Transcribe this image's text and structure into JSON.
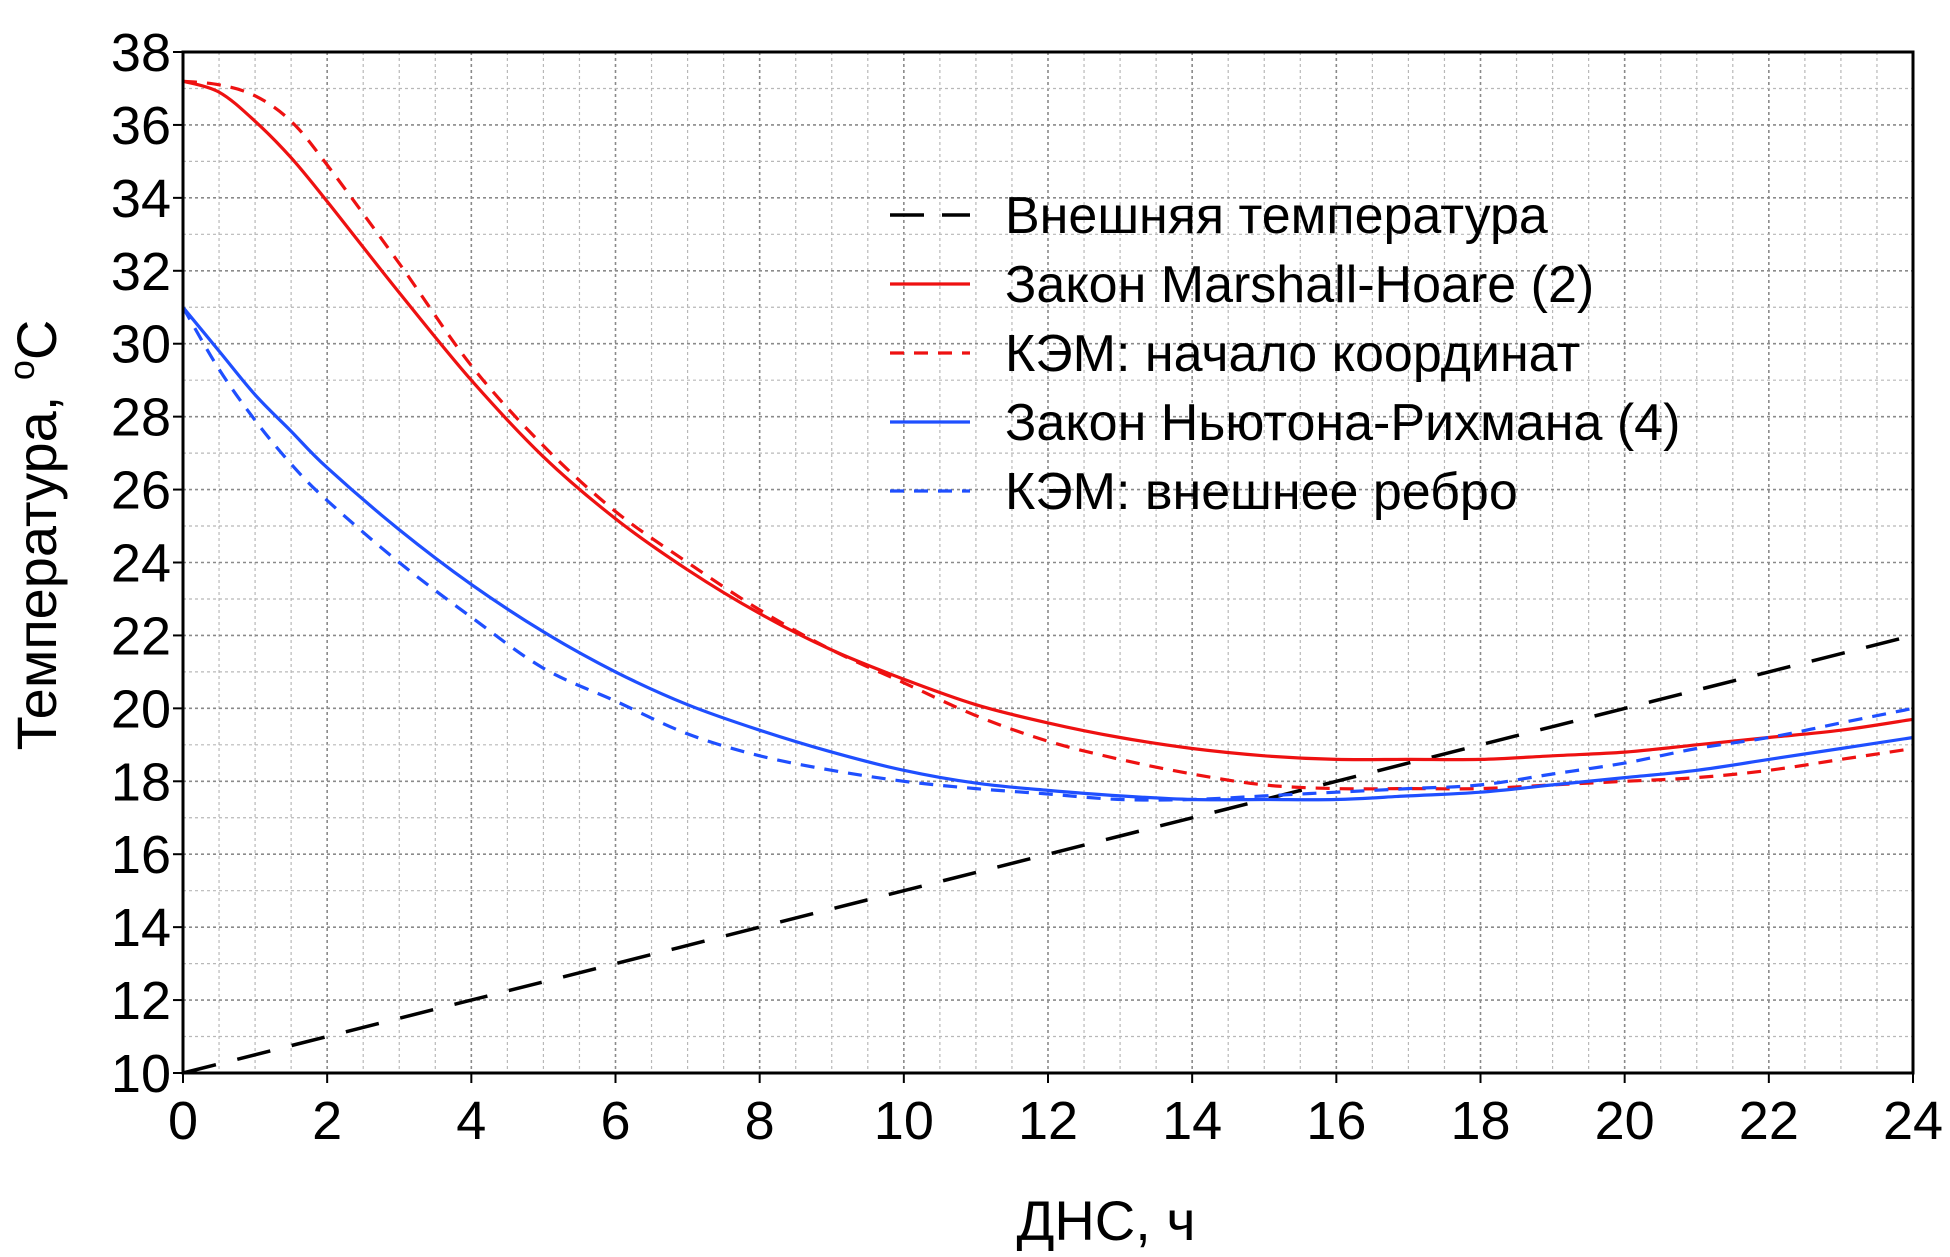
{
  "chart_data": {
    "type": "line",
    "xlabel": "ДНС, ч",
    "ylabel_main": "Температура, ",
    "ylabel_sup": "o",
    "ylabel_unit": "C",
    "xlim": [
      0,
      24
    ],
    "ylim": [
      10,
      38
    ],
    "x_ticks": [
      "0",
      "2",
      "4",
      "6",
      "8",
      "10",
      "12",
      "14",
      "16",
      "18",
      "20",
      "22",
      "24"
    ],
    "y_ticks": [
      "10",
      "12",
      "14",
      "16",
      "18",
      "20",
      "22",
      "24",
      "26",
      "28",
      "30",
      "32",
      "34",
      "36",
      "38"
    ],
    "grid": true,
    "legend_position": "top-right",
    "series": [
      {
        "name": "Внешняя температура",
        "color": "#000000",
        "style": "long-dash",
        "x": [
          0,
          2,
          4,
          6,
          8,
          10,
          12,
          14,
          16,
          18,
          20,
          22,
          24
        ],
        "y": [
          10,
          11,
          12,
          13,
          14,
          15,
          16,
          17,
          18,
          19,
          20,
          21,
          22
        ]
      },
      {
        "name": "Закон Marshall-Hoare (2)",
        "color": "#ee1111",
        "style": "solid",
        "x": [
          0,
          0.5,
          1,
          1.5,
          2,
          3,
          4,
          5,
          6,
          7,
          8,
          9,
          10,
          11,
          12,
          13,
          14,
          15,
          16,
          17,
          18,
          19,
          20,
          21,
          22,
          23,
          24
        ],
        "y": [
          37.2,
          36.9,
          36.1,
          35.1,
          33.9,
          31.4,
          29.0,
          26.9,
          25.2,
          23.8,
          22.6,
          21.6,
          20.8,
          20.1,
          19.6,
          19.2,
          18.9,
          18.7,
          18.6,
          18.6,
          18.6,
          18.7,
          18.8,
          19.0,
          19.2,
          19.4,
          19.7
        ]
      },
      {
        "name": "КЭМ: начало координат",
        "color": "#ee1111",
        "style": "short-dash",
        "x": [
          0,
          0.5,
          1,
          1.5,
          2,
          3,
          4,
          5,
          6,
          7,
          8,
          9,
          10,
          11,
          12,
          13,
          14,
          15,
          16,
          17,
          18,
          19,
          20,
          21,
          22,
          23,
          24
        ],
        "y": [
          37.2,
          37.1,
          36.8,
          36.1,
          34.9,
          32.2,
          29.4,
          27.2,
          25.4,
          24.0,
          22.7,
          21.6,
          20.7,
          19.8,
          19.1,
          18.6,
          18.2,
          17.9,
          17.8,
          17.8,
          17.8,
          17.9,
          18.0,
          18.1,
          18.3,
          18.6,
          18.9
        ]
      },
      {
        "name": "Закон Ньютона-Рихмана (4)",
        "color": "#1f4fff",
        "style": "solid",
        "x": [
          0,
          0.5,
          1,
          1.5,
          2,
          3,
          4,
          5,
          6,
          7,
          8,
          9,
          10,
          11,
          12,
          13,
          14,
          15,
          16,
          17,
          18,
          19,
          20,
          21,
          22,
          23,
          24
        ],
        "y": [
          31.0,
          29.8,
          28.6,
          27.6,
          26.6,
          24.9,
          23.4,
          22.1,
          21.0,
          20.1,
          19.4,
          18.8,
          18.3,
          17.95,
          17.75,
          17.6,
          17.5,
          17.5,
          17.5,
          17.6,
          17.7,
          17.9,
          18.1,
          18.3,
          18.6,
          18.9,
          19.2
        ]
      },
      {
        "name": "КЭМ: внешнее ребро",
        "color": "#1f4fff",
        "style": "short-dash",
        "x": [
          0,
          0.5,
          1,
          1.5,
          2,
          3,
          4,
          5,
          6,
          7,
          8,
          9,
          10,
          11,
          12,
          13,
          14,
          15,
          16,
          17,
          18,
          19,
          20,
          21,
          22,
          23,
          24
        ],
        "y": [
          31.0,
          29.3,
          27.9,
          26.7,
          25.7,
          24.0,
          22.5,
          21.1,
          20.2,
          19.3,
          18.7,
          18.3,
          18.0,
          17.8,
          17.65,
          17.5,
          17.5,
          17.6,
          17.7,
          17.8,
          17.9,
          18.2,
          18.5,
          18.9,
          19.2,
          19.6,
          20.0
        ]
      }
    ]
  }
}
